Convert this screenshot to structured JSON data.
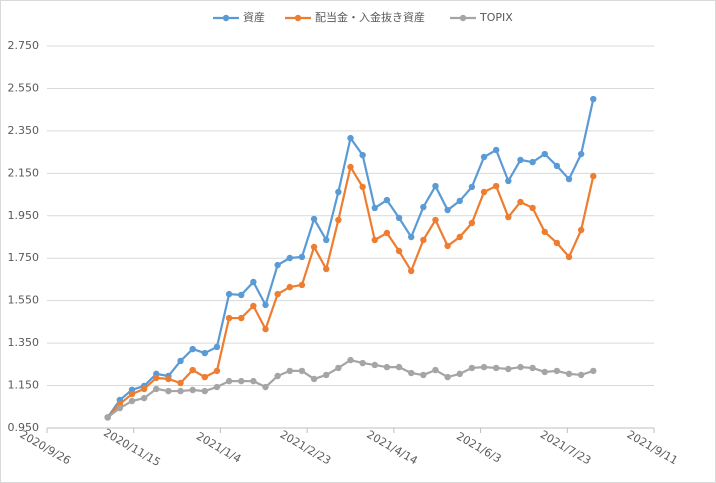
{
  "chart_data": {
    "type": "line",
    "x": [
      "2020/10/31",
      "2020/11/7",
      "2020/11/14",
      "2020/11/21",
      "2020/11/28",
      "2020/12/5",
      "2020/12/12",
      "2020/12/19",
      "2020/12/26",
      "2021/1/2",
      "2021/1/9",
      "2021/1/16",
      "2021/1/23",
      "2021/1/30",
      "2021/2/6",
      "2021/2/13",
      "2021/2/20",
      "2021/2/27",
      "2021/3/6",
      "2021/3/13",
      "2021/3/20",
      "2021/3/27",
      "2021/4/3",
      "2021/4/10",
      "2021/4/17",
      "2021/4/24",
      "2021/5/1",
      "2021/5/8",
      "2021/5/15",
      "2021/5/22",
      "2021/5/29",
      "2021/6/5",
      "2021/6/12",
      "2021/6/19",
      "2021/6/26",
      "2021/7/3",
      "2021/7/10",
      "2021/7/17",
      "2021/7/24",
      "2021/7/31",
      "2021/8/7"
    ],
    "series": [
      {
        "name": "資産",
        "color": "#5b9bd5",
        "values": [
          1.0,
          1.082,
          1.13,
          1.148,
          1.205,
          1.195,
          1.266,
          1.322,
          1.303,
          1.332,
          1.581,
          1.577,
          1.638,
          1.53,
          1.718,
          1.751,
          1.756,
          1.935,
          1.836,
          2.062,
          2.316,
          2.236,
          1.987,
          2.024,
          1.94,
          1.85,
          1.991,
          2.09,
          1.977,
          2.02,
          2.086,
          2.227,
          2.26,
          2.114,
          2.213,
          2.203,
          2.241,
          2.185,
          2.123,
          2.241,
          2.5
        ]
      },
      {
        "name": "配当金・入金抜き資産",
        "color": "#ed7d31",
        "values": [
          1.0,
          1.063,
          1.11,
          1.134,
          1.186,
          1.181,
          1.162,
          1.223,
          1.19,
          1.219,
          1.468,
          1.468,
          1.525,
          1.416,
          1.581,
          1.614,
          1.624,
          1.803,
          1.699,
          1.93,
          2.18,
          2.086,
          1.836,
          1.869,
          1.784,
          1.69,
          1.836,
          1.93,
          1.808,
          1.85,
          1.916,
          2.062,
          2.09,
          1.944,
          2.015,
          1.987,
          1.874,
          1.822,
          1.756,
          1.883,
          2.137
        ]
      },
      {
        "name": "TOPIX",
        "color": "#a5a5a5",
        "values": [
          1.0,
          1.044,
          1.077,
          1.091,
          1.134,
          1.124,
          1.124,
          1.129,
          1.124,
          1.143,
          1.171,
          1.171,
          1.171,
          1.143,
          1.195,
          1.219,
          1.219,
          1.181,
          1.2,
          1.233,
          1.27,
          1.256,
          1.247,
          1.237,
          1.237,
          1.209,
          1.2,
          1.223,
          1.19,
          1.205,
          1.233,
          1.237,
          1.233,
          1.228,
          1.237,
          1.233,
          1.214,
          1.219,
          1.205,
          1.2,
          1.219
        ]
      }
    ],
    "xlim": [
      "2020/9/26",
      "2021/9/11"
    ],
    "xticks": [
      "2020/9/26",
      "2020/11/15",
      "2021/1/4",
      "2021/2/23",
      "2021/4/14",
      "2021/6/3",
      "2021/7/23",
      "2021/9/11"
    ],
    "ylim": [
      0.95,
      2.75
    ],
    "yticks": [
      {
        "value": 0.95,
        "label": "0.950"
      },
      {
        "value": 1.15,
        "label": "1.150"
      },
      {
        "value": 1.35,
        "label": "1.350"
      },
      {
        "value": 1.55,
        "label": "1.550"
      },
      {
        "value": 1.75,
        "label": "1.750"
      },
      {
        "value": 1.95,
        "label": "1.950"
      },
      {
        "value": 2.15,
        "label": "2.150"
      },
      {
        "value": 2.35,
        "label": "2.350"
      },
      {
        "value": 2.55,
        "label": "2.550"
      },
      {
        "value": 2.75,
        "label": "2.750"
      }
    ],
    "grid": true,
    "legend": "top"
  }
}
